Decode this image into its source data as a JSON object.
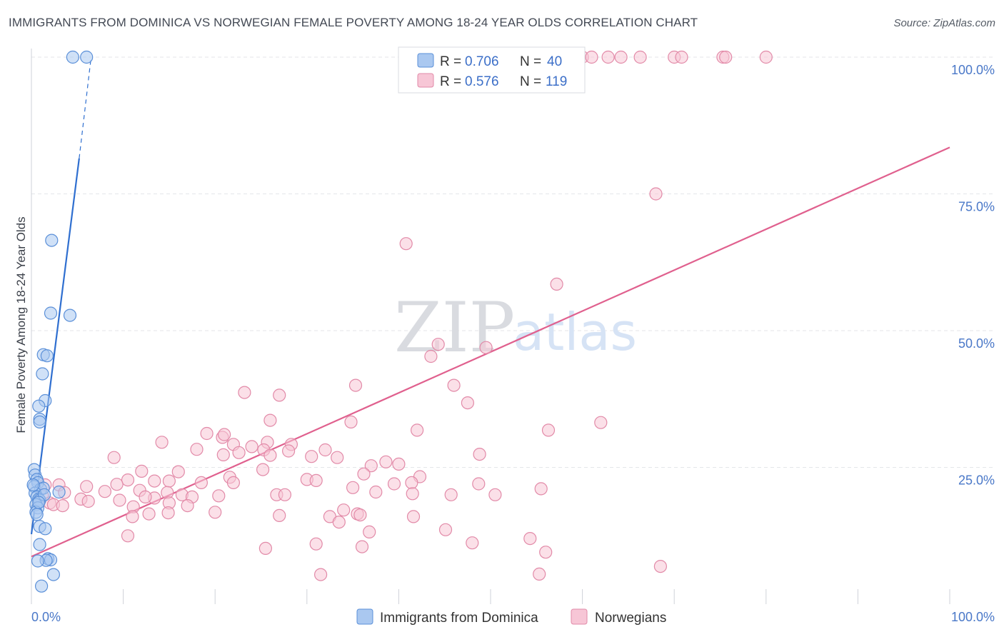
{
  "title": "IMMIGRANTS FROM DOMINICA VS NORWEGIAN FEMALE POVERTY AMONG 18-24 YEAR OLDS CORRELATION CHART",
  "source": "Source: ZipAtlas.com",
  "watermark": {
    "zip": "ZIP",
    "atlas": "atlas"
  },
  "colors": {
    "blue_fill": "#aac8f0",
    "blue_stroke": "#5a8fd8",
    "blue_line": "#2f6fd0",
    "pink_fill": "#f7c6d6",
    "pink_stroke": "#e28aa8",
    "pink_line": "#e0608e",
    "grid": "#e4e6ea",
    "axis_text": "#4a78c8"
  },
  "legend": {
    "rows": [
      {
        "r_label": "R =",
        "r_value": "0.706",
        "n_label": "N =",
        "n_value": "40"
      },
      {
        "r_label": "R =",
        "r_value": "0.576",
        "n_label": "N =",
        "n_value": "119"
      }
    ]
  },
  "bottom_legend": [
    "Immigrants from Dominica",
    "Norwegians"
  ],
  "chart_data": {
    "type": "scatter",
    "xlabel": "",
    "ylabel": "Female Poverty Among 18-24 Year Olds",
    "xlim": [
      0,
      100
    ],
    "ylim": [
      0,
      100
    ],
    "x_tick_labels": [
      "0.0%",
      "100.0%"
    ],
    "y_ticks": [
      25,
      50,
      75,
      100
    ],
    "y_tick_labels": [
      "25.0%",
      "50.0%",
      "75.0%",
      "100.0%"
    ],
    "grid": true,
    "series": [
      {
        "name": "Immigrants from Dominica",
        "trend": {
          "x0": 0,
          "y0": 12.8,
          "x1": 5.2,
          "y1": 81.5,
          "dash_to_x": 6.5,
          "dash_to_y": 100
        },
        "points": [
          [
            6.0,
            100
          ],
          [
            4.5,
            100
          ],
          [
            2.2,
            66.5
          ],
          [
            2.1,
            53.2
          ],
          [
            4.2,
            52.8
          ],
          [
            1.3,
            45.6
          ],
          [
            1.7,
            45.4
          ],
          [
            1.2,
            42.1
          ],
          [
            1.5,
            37.2
          ],
          [
            0.8,
            36.2
          ],
          [
            0.9,
            33.8
          ],
          [
            0.9,
            33.3
          ],
          [
            0.3,
            24.6
          ],
          [
            0.4,
            23.6
          ],
          [
            0.6,
            22.8
          ],
          [
            0.7,
            22.2
          ],
          [
            0.3,
            21.5
          ],
          [
            1.0,
            21.0
          ],
          [
            1.3,
            21.2
          ],
          [
            0.4,
            20.3
          ],
          [
            0.6,
            19.6
          ],
          [
            0.8,
            19.2
          ],
          [
            0.9,
            19.0
          ],
          [
            3.0,
            20.5
          ],
          [
            0.5,
            18.2
          ],
          [
            0.7,
            17.6
          ],
          [
            0.5,
            16.8
          ],
          [
            0.6,
            16.4
          ],
          [
            0.9,
            14.2
          ],
          [
            1.5,
            13.8
          ],
          [
            0.9,
            10.9
          ],
          [
            1.8,
            8.3
          ],
          [
            2.1,
            8.1
          ],
          [
            1.6,
            8.0
          ],
          [
            0.7,
            7.9
          ],
          [
            2.4,
            5.4
          ],
          [
            1.1,
            3.3
          ],
          [
            1.4,
            20.0
          ],
          [
            0.2,
            21.8
          ],
          [
            0.8,
            18.6
          ]
        ]
      },
      {
        "name": "Norwegians",
        "trend": {
          "x0": 0,
          "y0": 8.7,
          "x1": 100,
          "y1": 83.5
        },
        "points": [
          [
            44.2,
            100
          ],
          [
            46.0,
            100
          ],
          [
            56.5,
            100
          ],
          [
            57.5,
            100
          ],
          [
            60.0,
            100
          ],
          [
            61.0,
            100
          ],
          [
            62.8,
            100
          ],
          [
            64.2,
            100
          ],
          [
            66.3,
            100
          ],
          [
            70.0,
            100
          ],
          [
            70.8,
            100
          ],
          [
            75.3,
            100
          ],
          [
            75.6,
            100
          ],
          [
            80.0,
            100
          ],
          [
            68.0,
            75.0
          ],
          [
            40.8,
            65.9
          ],
          [
            57.2,
            58.5
          ],
          [
            44.3,
            47.5
          ],
          [
            49.5,
            46.9
          ],
          [
            43.5,
            45.3
          ],
          [
            35.3,
            40.0
          ],
          [
            46.0,
            40.0
          ],
          [
            23.2,
            38.7
          ],
          [
            27.0,
            38.2
          ],
          [
            47.5,
            36.8
          ],
          [
            26.0,
            33.6
          ],
          [
            34.8,
            33.3
          ],
          [
            62.0,
            33.2
          ],
          [
            19.1,
            31.2
          ],
          [
            42.0,
            31.8
          ],
          [
            56.3,
            31.8
          ],
          [
            20.8,
            30.5
          ],
          [
            21.0,
            31.0
          ],
          [
            25.7,
            29.6
          ],
          [
            28.3,
            29.2
          ],
          [
            22.0,
            29.2
          ],
          [
            18.0,
            28.3
          ],
          [
            14.2,
            29.6
          ],
          [
            25.3,
            28.2
          ],
          [
            28.0,
            28.0
          ],
          [
            20.9,
            27.3
          ],
          [
            22.6,
            27.7
          ],
          [
            26.0,
            27.2
          ],
          [
            32.0,
            28.2
          ],
          [
            24.0,
            28.8
          ],
          [
            48.8,
            27.4
          ],
          [
            30.5,
            27.0
          ],
          [
            33.3,
            26.8
          ],
          [
            38.6,
            26.0
          ],
          [
            40.0,
            25.6
          ],
          [
            37.0,
            25.3
          ],
          [
            25.2,
            24.6
          ],
          [
            16.0,
            24.2
          ],
          [
            9.0,
            26.8
          ],
          [
            12.0,
            24.3
          ],
          [
            10.5,
            22.7
          ],
          [
            30.0,
            22.8
          ],
          [
            31.0,
            22.6
          ],
          [
            36.2,
            23.8
          ],
          [
            42.3,
            23.3
          ],
          [
            21.6,
            23.2
          ],
          [
            18.5,
            22.2
          ],
          [
            15.0,
            22.5
          ],
          [
            13.4,
            22.5
          ],
          [
            41.4,
            22.2
          ],
          [
            39.5,
            22.0
          ],
          [
            35.0,
            21.3
          ],
          [
            22.0,
            22.2
          ],
          [
            48.7,
            22.0
          ],
          [
            55.5,
            21.1
          ],
          [
            6.0,
            21.5
          ],
          [
            1.5,
            21.8
          ],
          [
            3.0,
            21.8
          ],
          [
            9.3,
            21.9
          ],
          [
            11.8,
            20.8
          ],
          [
            8.0,
            20.6
          ],
          [
            3.6,
            20.4
          ],
          [
            14.8,
            20.4
          ],
          [
            16.4,
            20.0
          ],
          [
            20.4,
            19.8
          ],
          [
            17.5,
            19.6
          ],
          [
            13.4,
            19.4
          ],
          [
            12.4,
            19.6
          ],
          [
            26.7,
            20.0
          ],
          [
            27.6,
            20.0
          ],
          [
            37.5,
            20.5
          ],
          [
            45.7,
            20.0
          ],
          [
            41.5,
            20.2
          ],
          [
            50.5,
            20.0
          ],
          [
            5.4,
            19.2
          ],
          [
            1.2,
            19.8
          ],
          [
            2.0,
            18.5
          ],
          [
            2.4,
            18.2
          ],
          [
            3.4,
            18.0
          ],
          [
            6.2,
            18.8
          ],
          [
            9.6,
            19.0
          ],
          [
            15.0,
            18.5
          ],
          [
            17.0,
            18.0
          ],
          [
            11.1,
            17.8
          ],
          [
            12.8,
            16.5
          ],
          [
            14.9,
            16.7
          ],
          [
            20.0,
            16.8
          ],
          [
            27.0,
            16.2
          ],
          [
            34.0,
            17.2
          ],
          [
            35.5,
            16.5
          ],
          [
            35.8,
            16.3
          ],
          [
            41.6,
            16.0
          ],
          [
            32.5,
            16.0
          ],
          [
            33.5,
            15.0
          ],
          [
            11.0,
            16.0
          ],
          [
            36.8,
            13.2
          ],
          [
            45.1,
            13.6
          ],
          [
            54.3,
            12.0
          ],
          [
            10.5,
            12.5
          ],
          [
            48.0,
            11.2
          ],
          [
            31.0,
            11.0
          ],
          [
            36.0,
            10.5
          ],
          [
            25.5,
            10.2
          ],
          [
            56.0,
            9.5
          ],
          [
            68.5,
            6.9
          ],
          [
            31.5,
            5.4
          ],
          [
            55.3,
            5.5
          ]
        ]
      }
    ]
  }
}
